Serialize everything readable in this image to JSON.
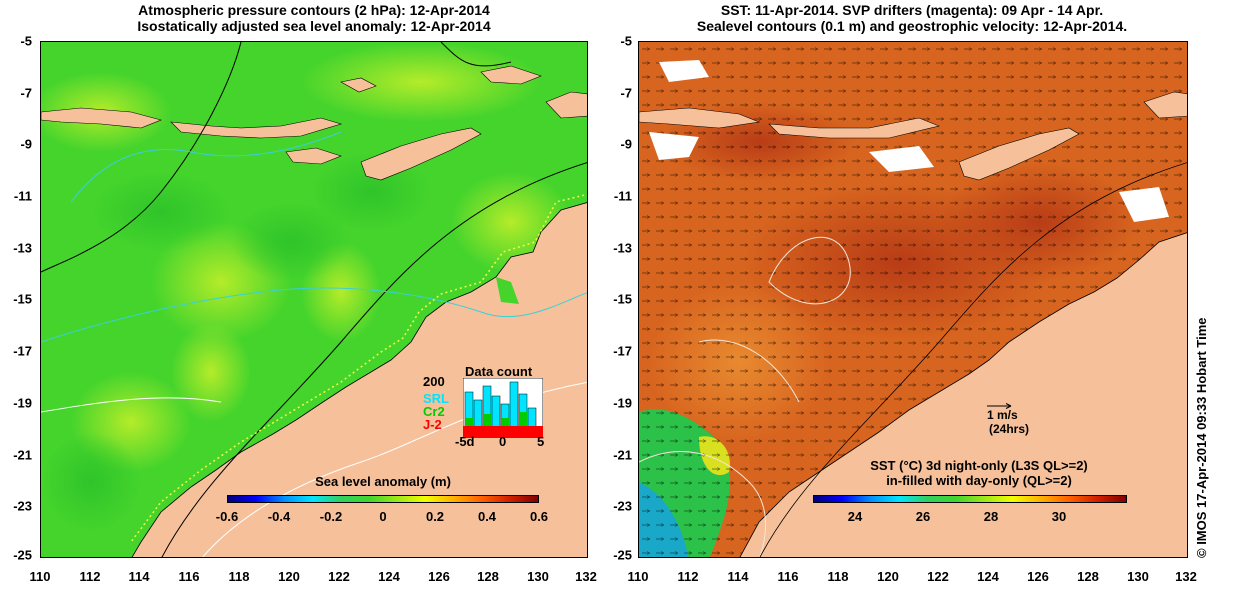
{
  "left_panel": {
    "title_line1": "Atmospheric pressure contours (2 hPa): 12-Apr-2014",
    "title_line2": "Isostatically adjusted sea level anomaly: 12-Apr-2014",
    "colorbar_label": "Sea level anomaly (m)",
    "colorbar_ticks": [
      "-0.6",
      "-0.4",
      "-0.2",
      "0",
      "0.2",
      "0.4",
      "0.6"
    ],
    "inset": {
      "title": "Data count",
      "y_tick": "200",
      "series": [
        "SRL",
        "Cr2",
        "J-2"
      ],
      "series_colors": [
        "#00e5ff",
        "#00cc00",
        "#ff0000"
      ],
      "x_ticks": [
        "-5d",
        "0",
        "5"
      ]
    }
  },
  "right_panel": {
    "title_line1": "SST: 11-Apr-2014. SVP drifters (magenta): 09 Apr - 14 Apr.",
    "title_line2": "Sealevel contours (0.1 m) and geostrophic velocity: 12-Apr-2014.",
    "colorbar_label_line1": "SST (°C)  3d night-only (L3S QL>=2)",
    "colorbar_label_line2": "in-filled with day-only (QL>=2)",
    "colorbar_ticks": [
      "24",
      "26",
      "28",
      "30"
    ],
    "velocity_scale_line1": "1 m/s",
    "velocity_scale_line2": "(24hrs)"
  },
  "axes": {
    "x_ticks": [
      "110",
      "112",
      "114",
      "116",
      "118",
      "120",
      "122",
      "124",
      "126",
      "128",
      "130",
      "132"
    ],
    "y_ticks": [
      "-5",
      "-7",
      "-9",
      "-11",
      "-13",
      "-15",
      "-17",
      "-19",
      "-21",
      "-23",
      "-25"
    ]
  },
  "copyright": "© IMOS 17-Apr-2014 09:33 Hobart Time",
  "colors": {
    "land": "#f6c19a",
    "sla_green": "#3fd62e",
    "sla_yellow_green": "#9be81a",
    "sst_orange": "#d8651f",
    "sst_red": "#c24a1c"
  }
}
